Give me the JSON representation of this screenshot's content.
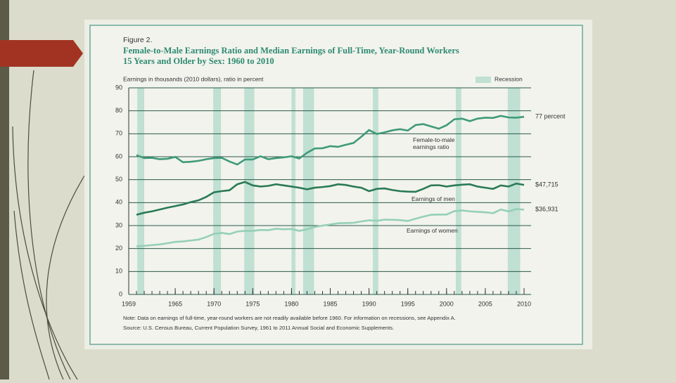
{
  "chart_data": {
    "type": "line",
    "figure_label": "Figure 2.",
    "title": [
      "Female-to-Male Earnings Ratio and Median Earnings of Full-Time, Year-Round Workers",
      "15 Years and Older by Sex: 1960 to 2010"
    ],
    "y_label": "Earnings in thousands (2010 dollars), ratio in percent",
    "note": "Note: Data on earnings of full-time, year-round workers are not readily available before 1960. For information on recessions, see Appendix A.",
    "source": "Source: U.S. Census Bureau, Current Population Survey, 1961 to 2011 Annual Social and Economic Supplements.",
    "recessions": {
      "label": "Recession",
      "color": "#bfe0d2",
      "periods": [
        [
          1960.1,
          1961.0
        ],
        [
          1969.9,
          1970.9
        ],
        [
          1973.9,
          1975.2
        ],
        [
          1980.0,
          1980.5
        ],
        [
          1981.5,
          1982.9
        ],
        [
          1990.5,
          1991.2
        ],
        [
          2001.2,
          2001.9
        ],
        [
          2007.9,
          2009.5
        ]
      ]
    },
    "x": [
      1960,
      1961,
      1962,
      1963,
      1964,
      1965,
      1966,
      1967,
      1968,
      1969,
      1970,
      1971,
      1972,
      1973,
      1974,
      1975,
      1976,
      1977,
      1978,
      1979,
      1980,
      1981,
      1982,
      1983,
      1984,
      1985,
      1986,
      1987,
      1988,
      1989,
      1990,
      1991,
      1992,
      1993,
      1994,
      1995,
      1996,
      1997,
      1998,
      1999,
      2000,
      2001,
      2002,
      2003,
      2004,
      2005,
      2006,
      2007,
      2008,
      2009,
      2010
    ],
    "xlim": [
      1959,
      2010
    ],
    "xticks": [
      1959,
      1965,
      1970,
      1975,
      1980,
      1985,
      1990,
      1995,
      2000,
      2005,
      2010
    ],
    "ylim": [
      0,
      90
    ],
    "yticks": [
      0,
      10,
      20,
      30,
      40,
      50,
      60,
      70,
      80,
      90
    ],
    "grid": true,
    "series": [
      {
        "name": "Female-to-male earnings ratio",
        "color": "#3f9a78",
        "values": [
          60.7,
          59.4,
          59.5,
          58.9,
          59.1,
          59.9,
          57.6,
          57.8,
          58.2,
          58.9,
          59.4,
          59.5,
          57.9,
          56.6,
          58.8,
          58.8,
          60.2,
          58.9,
          59.4,
          59.7,
          60.2,
          59.2,
          61.7,
          63.6,
          63.7,
          64.6,
          64.3,
          65.2,
          66.0,
          68.7,
          71.6,
          69.9,
          70.6,
          71.5,
          72.0,
          71.4,
          73.8,
          74.2,
          73.2,
          72.2,
          73.7,
          76.3,
          76.6,
          75.5,
          76.6,
          77.0,
          76.9,
          77.8,
          77.1,
          77.0,
          77.4
        ],
        "value_labels": [
          null,
          null,
          null,
          null,
          null,
          null,
          null,
          null,
          null,
          null,
          null,
          null,
          null,
          null,
          null,
          null,
          null,
          null,
          null,
          null,
          null,
          null,
          null,
          null,
          null,
          null,
          null,
          null,
          null,
          null,
          null,
          null,
          null,
          null,
          null,
          null,
          null,
          null,
          null,
          null,
          null,
          null,
          null,
          null,
          null,
          null,
          null,
          null,
          null,
          null,
          "77 percent"
        ]
      },
      {
        "name": "Earnings of men",
        "color": "#2a7a55",
        "values": [
          34.7,
          35.6,
          36.2,
          37.0,
          37.8,
          38.5,
          39.2,
          40.2,
          41.0,
          42.5,
          44.5,
          45.0,
          45.4,
          48.0,
          49.0,
          47.5,
          47.0,
          47.3,
          48.0,
          47.5,
          47.0,
          46.5,
          45.8,
          46.5,
          46.8,
          47.2,
          48.0,
          47.7,
          47.0,
          46.5,
          45.0,
          46.0,
          46.2,
          45.5,
          45.0,
          44.8,
          44.7,
          46.0,
          47.5,
          47.6,
          47.0,
          47.5,
          47.8,
          48.0,
          47.0,
          46.5,
          46.0,
          47.5,
          47.0,
          48.3,
          47.715
        ],
        "value_labels": [
          null,
          null,
          null,
          null,
          null,
          null,
          null,
          null,
          null,
          null,
          null,
          null,
          null,
          null,
          null,
          null,
          null,
          null,
          null,
          null,
          null,
          null,
          null,
          null,
          null,
          null,
          null,
          null,
          null,
          null,
          null,
          null,
          null,
          null,
          null,
          null,
          null,
          null,
          null,
          null,
          null,
          null,
          null,
          null,
          null,
          null,
          null,
          null,
          null,
          null,
          "$47,715"
        ]
      },
      {
        "name": "Earnings of women",
        "color": "#95d0b7",
        "values": [
          21.0,
          21.2,
          21.5,
          21.8,
          22.3,
          22.9,
          23.1,
          23.5,
          23.9,
          25.0,
          26.4,
          26.8,
          26.3,
          27.4,
          27.7,
          27.7,
          28.1,
          28.0,
          28.6,
          28.4,
          28.5,
          27.7,
          28.4,
          29.4,
          30.0,
          30.5,
          31.0,
          31.1,
          31.2,
          31.8,
          32.3,
          32.1,
          32.6,
          32.5,
          32.4,
          32.0,
          33.0,
          33.9,
          34.7,
          34.8,
          34.8,
          36.3,
          36.6,
          36.2,
          36.0,
          35.8,
          35.4,
          37.0,
          36.2,
          37.2,
          36.931
        ],
        "value_labels": [
          null,
          null,
          null,
          null,
          null,
          null,
          null,
          null,
          null,
          null,
          null,
          null,
          null,
          null,
          null,
          null,
          null,
          null,
          null,
          null,
          null,
          null,
          null,
          null,
          null,
          null,
          null,
          null,
          null,
          null,
          null,
          null,
          null,
          null,
          null,
          null,
          null,
          null,
          null,
          null,
          null,
          null,
          null,
          null,
          null,
          null,
          null,
          null,
          null,
          null,
          "$36,931"
        ]
      }
    ]
  }
}
